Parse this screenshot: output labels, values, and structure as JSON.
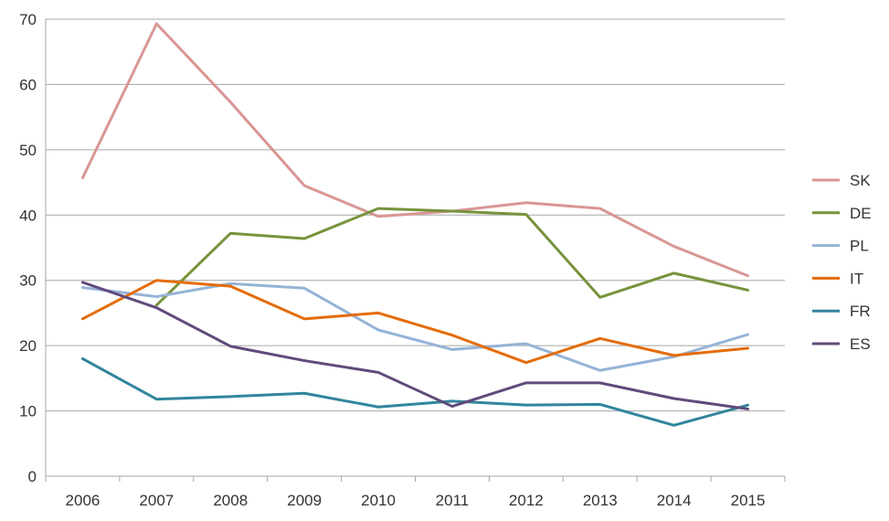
{
  "chart_data": {
    "type": "line",
    "title": "",
    "xlabel": "",
    "ylabel": "",
    "categories": [
      "2006",
      "2007",
      "2008",
      "2009",
      "2010",
      "2011",
      "2012",
      "2013",
      "2014",
      "2015"
    ],
    "ylim": [
      0,
      70
    ],
    "yticks": [
      0,
      10,
      20,
      30,
      40,
      50,
      60,
      70
    ],
    "grid": "horizontal",
    "legend_position": "right",
    "series": [
      {
        "name": "SK",
        "color": "#d99694",
        "values": [
          45.7,
          69.3,
          57.3,
          44.5,
          39.8,
          40.6,
          41.9,
          41.0,
          35.2,
          30.7
        ]
      },
      {
        "name": "DE",
        "color": "#77933c",
        "values": [
          null,
          26.2,
          37.2,
          36.4,
          41.0,
          40.6,
          40.1,
          27.4,
          31.1,
          28.5
        ]
      },
      {
        "name": "PL",
        "color": "#95b3d7",
        "values": [
          28.9,
          27.5,
          29.5,
          28.8,
          22.4,
          19.4,
          20.3,
          16.2,
          18.3,
          21.7
        ]
      },
      {
        "name": "IT",
        "color": "#e46c0a",
        "values": [
          24.1,
          30.0,
          29.1,
          24.1,
          25.0,
          21.6,
          17.4,
          21.1,
          18.5,
          19.6
        ]
      },
      {
        "name": "FR",
        "color": "#31859c",
        "values": [
          18.0,
          11.8,
          12.2,
          12.7,
          10.6,
          11.5,
          10.9,
          11.0,
          7.8,
          10.9
        ]
      },
      {
        "name": "ES",
        "color": "#604a7b",
        "values": [
          29.7,
          25.8,
          19.9,
          17.7,
          15.9,
          10.7,
          14.3,
          14.3,
          11.9,
          10.3
        ]
      }
    ]
  }
}
